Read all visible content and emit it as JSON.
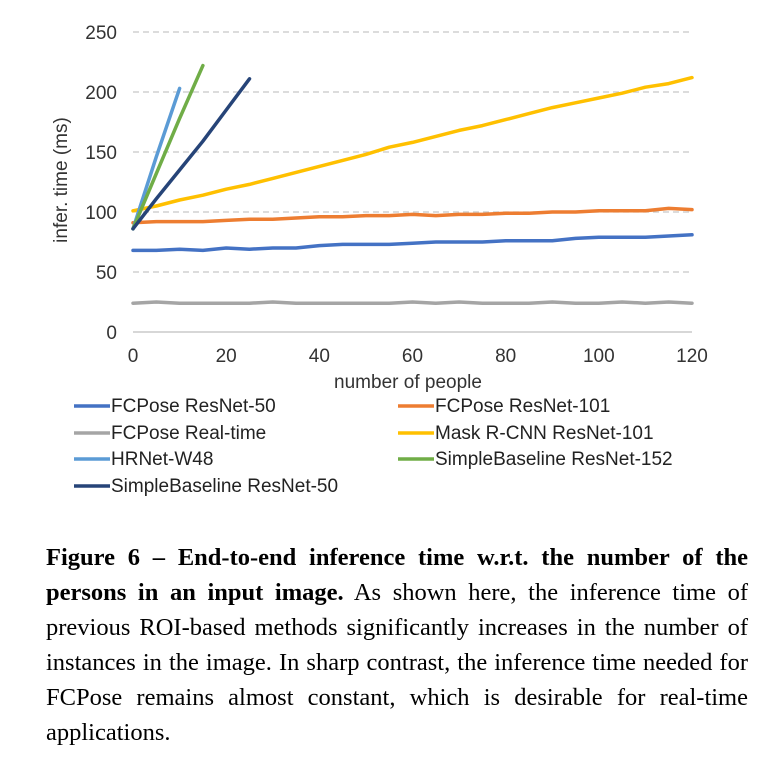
{
  "chart_data": {
    "type": "line",
    "xlabel": "number of people",
    "ylabel": "infer. time (ms)",
    "xlim": [
      0,
      120
    ],
    "ylim": [
      0,
      250
    ],
    "xticks": [
      "0",
      "20",
      "40",
      "60",
      "80",
      "100",
      "120"
    ],
    "yticks": [
      "0",
      "50",
      "100",
      "150",
      "200",
      "250"
    ],
    "grid": "horizontal-dashed",
    "legend_position": "bottom",
    "series": [
      {
        "name": "FCPose ResNet-50",
        "color": "#4472C4",
        "x": [
          0,
          5,
          10,
          15,
          20,
          25,
          30,
          35,
          40,
          45,
          50,
          55,
          60,
          65,
          70,
          75,
          80,
          85,
          90,
          95,
          100,
          105,
          110,
          115,
          120
        ],
        "y": [
          68,
          68,
          69,
          68,
          70,
          69,
          70,
          70,
          72,
          73,
          73,
          73,
          74,
          75,
          75,
          75,
          76,
          76,
          76,
          78,
          79,
          79,
          79,
          80,
          81
        ]
      },
      {
        "name": "FCPose ResNet-101",
        "color": "#ED7D31",
        "x": [
          0,
          5,
          10,
          15,
          20,
          25,
          30,
          35,
          40,
          45,
          50,
          55,
          60,
          65,
          70,
          75,
          80,
          85,
          90,
          95,
          100,
          105,
          110,
          115,
          120
        ],
        "y": [
          91,
          92,
          92,
          92,
          93,
          94,
          94,
          95,
          96,
          96,
          97,
          97,
          98,
          97,
          98,
          98,
          99,
          99,
          100,
          100,
          101,
          101,
          101,
          103,
          102
        ]
      },
      {
        "name": "FCPose Real-time",
        "color": "#A5A5A5",
        "x": [
          0,
          5,
          10,
          15,
          20,
          25,
          30,
          35,
          40,
          45,
          50,
          55,
          60,
          65,
          70,
          75,
          80,
          85,
          90,
          95,
          100,
          105,
          110,
          115,
          120
        ],
        "y": [
          24,
          25,
          24,
          24,
          24,
          24,
          25,
          24,
          24,
          24,
          24,
          24,
          25,
          24,
          25,
          24,
          24,
          24,
          25,
          24,
          24,
          25,
          24,
          25,
          24
        ]
      },
      {
        "name": "Mask R-CNN ResNet-101",
        "color": "#FFC000",
        "x": [
          0,
          5,
          10,
          15,
          20,
          25,
          30,
          35,
          40,
          45,
          50,
          55,
          60,
          65,
          70,
          75,
          80,
          85,
          90,
          95,
          100,
          105,
          110,
          115,
          120
        ],
        "y": [
          101,
          105,
          110,
          114,
          119,
          123,
          128,
          133,
          138,
          143,
          148,
          154,
          158,
          163,
          168,
          172,
          177,
          182,
          187,
          191,
          195,
          199,
          204,
          207,
          212
        ]
      },
      {
        "name": "HRNet-W48",
        "color": "#5B9BD5",
        "x": [
          0,
          5,
          10
        ],
        "y": [
          86,
          146,
          203
        ]
      },
      {
        "name": "SimpleBaseline ResNet-152",
        "color": "#70AD47",
        "x": [
          0,
          5,
          10,
          15
        ],
        "y": [
          86,
          132,
          178,
          222
        ]
      },
      {
        "name": "SimpleBaseline ResNet-50",
        "color": "#264478",
        "x": [
          0,
          5,
          10,
          15,
          20,
          25
        ],
        "y": [
          86,
          111,
          135,
          159,
          185,
          211
        ]
      }
    ]
  },
  "caption": {
    "label": "Figure 6 – End-to-end inference time w.r.t. the number of the persons in an input image.",
    "text": " As shown here, the inference time of previous ROI-based methods significantly increases in the number of instances in the image. In sharp contrast, the inference time needed for FCPose remains almost constant, which is desirable for real-time applications."
  }
}
